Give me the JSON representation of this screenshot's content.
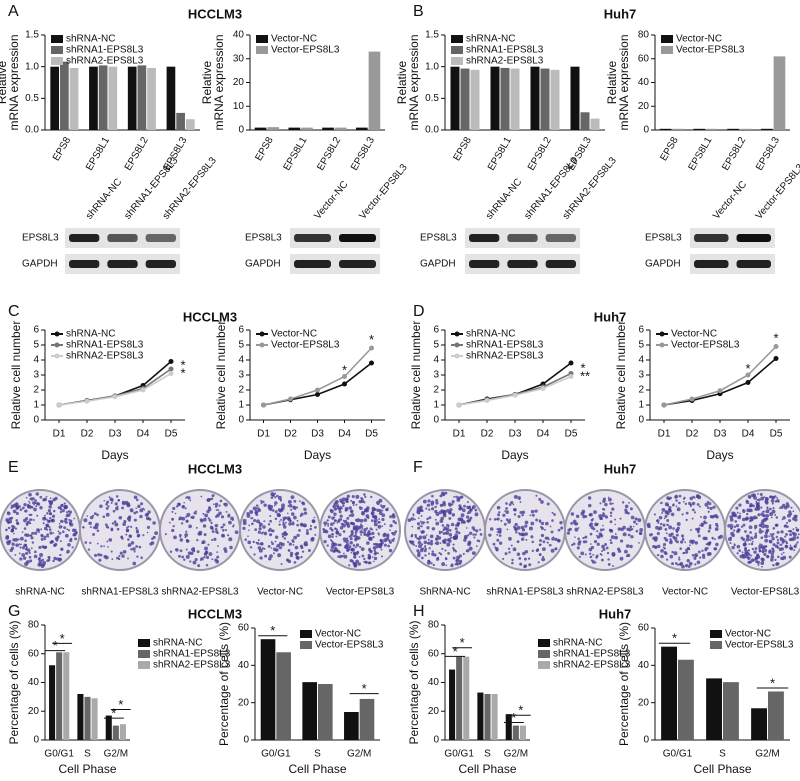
{
  "panel_labels": [
    "A",
    "B",
    "C",
    "D",
    "E",
    "F",
    "G",
    "H"
  ],
  "chart_data": [
    {
      "type": "bar",
      "title": "HCCLM3",
      "ylabel": [
        "Relative",
        "mRNA expression"
      ],
      "categories": [
        "EPS8",
        "EPS8L1",
        "EPS8L2",
        "EPS8L3"
      ],
      "ylim": [
        0,
        1.5
      ],
      "yticks": [
        {
          "value": 0,
          "label": "0.0"
        },
        0.5,
        {
          "value": 1,
          "label": "1.0"
        },
        1.5
      ],
      "legend": "upper left",
      "series": [
        {
          "name": "shRNA-NC",
          "color": "#111111",
          "values": [
            1.0,
            1.0,
            1.0,
            1.0
          ]
        },
        {
          "name": "shRNA1-EPS8L3",
          "color": "#666666",
          "values": [
            1.08,
            1.02,
            1.02,
            0.27
          ]
        },
        {
          "name": "shRNA2-EPS8L3",
          "color": "#bbbbbb",
          "values": [
            0.98,
            1.0,
            0.98,
            0.17
          ]
        }
      ]
    },
    {
      "type": "bar",
      "ylabel": [
        "Relative",
        "mRNA expression"
      ],
      "categories": [
        "EPS8",
        "EPS8L1",
        "EPS8L2",
        "EPS8L3"
      ],
      "ylim": [
        0,
        40
      ],
      "yticks": [
        0,
        10,
        20,
        30,
        40
      ],
      "legend": "upper left",
      "series": [
        {
          "name": "Vector-NC",
          "color": "#111111",
          "values": [
            1,
            1,
            1,
            1
          ]
        },
        {
          "name": "Vector-EPS8L3",
          "color": "#999999",
          "values": [
            1.2,
            1,
            1,
            33
          ]
        }
      ]
    },
    {
      "type": "bar",
      "title": "Huh7",
      "ylabel": [
        "Relative",
        "mRNA expression"
      ],
      "categories": [
        "EPS8",
        "EPS8L1",
        "EPS8L2",
        "EPS8L3"
      ],
      "ylim": [
        0,
        1.5
      ],
      "yticks": [
        {
          "value": 0,
          "label": "0.0"
        },
        0.5,
        {
          "value": 1,
          "label": "1.0"
        },
        1.5
      ],
      "legend": "upper left",
      "series": [
        {
          "name": "shRNA-NC",
          "color": "#111111",
          "values": [
            1.0,
            1.0,
            1.0,
            1.0
          ]
        },
        {
          "name": "shRNA1-EPS8L3",
          "color": "#666666",
          "values": [
            0.97,
            0.98,
            0.97,
            0.28
          ]
        },
        {
          "name": "shRNA2-EPS8L3",
          "color": "#bbbbbb",
          "values": [
            0.95,
            0.97,
            0.95,
            0.18
          ]
        }
      ]
    },
    {
      "type": "bar",
      "ylabel": [
        "Relative",
        "mRNA expression"
      ],
      "categories": [
        "EPS8",
        "EPS8L1",
        "EPS8L2",
        "EPS8L3"
      ],
      "ylim": [
        0,
        80
      ],
      "yticks": [
        0,
        20,
        40,
        60,
        80
      ],
      "legend": "upper left",
      "series": [
        {
          "name": "Vector-NC",
          "color": "#111111",
          "values": [
            1,
            1,
            1,
            1
          ]
        },
        {
          "name": "Vector-EPS8L3",
          "color": "#999999",
          "values": [
            1,
            1,
            1,
            62
          ]
        }
      ]
    },
    {
      "type": "line",
      "title": "HCCLM3",
      "ylabel": [
        "Relative cell number"
      ],
      "xlabel": "Days",
      "categories": [
        "D1",
        "D2",
        "D3",
        "D4",
        "D5"
      ],
      "ylim": [
        0,
        6
      ],
      "yticks": [
        0,
        1,
        2,
        3,
        4,
        5,
        6
      ],
      "legend": "upper left",
      "annotations": [
        "*",
        "*"
      ],
      "series": [
        {
          "name": "shRNA-NC",
          "color": "#111111",
          "values": [
            1,
            1.3,
            1.6,
            2.3,
            3.9
          ]
        },
        {
          "name": "shRNA1-EPS8L3",
          "color": "#777777",
          "values": [
            1,
            1.3,
            1.6,
            2.1,
            3.4
          ]
        },
        {
          "name": "shRNA2-EPS8L3",
          "color": "#cccccc",
          "values": [
            1,
            1.25,
            1.55,
            2.0,
            3.1
          ]
        }
      ]
    },
    {
      "type": "line",
      "ylabel": [
        "Relative cell number"
      ],
      "xlabel": "Days",
      "categories": [
        "D1",
        "D2",
        "D3",
        "D4",
        "D5"
      ],
      "ylim": [
        0,
        6
      ],
      "yticks": [
        0,
        1,
        2,
        3,
        4,
        5,
        6
      ],
      "legend": "upper left",
      "annotations": [
        "*",
        "*"
      ],
      "series": [
        {
          "name": "Vector-NC",
          "color": "#111111",
          "values": [
            1,
            1.35,
            1.7,
            2.4,
            3.8
          ]
        },
        {
          "name": "Vector-EPS8L3",
          "color": "#999999",
          "values": [
            1,
            1.4,
            2.0,
            2.9,
            4.8
          ]
        }
      ]
    },
    {
      "type": "line",
      "title": "Huh7",
      "ylabel": [
        "Relative cell number"
      ],
      "xlabel": "Days",
      "categories": [
        "D1",
        "D2",
        "D3",
        "D4",
        "D5"
      ],
      "ylim": [
        0,
        6
      ],
      "yticks": [
        0,
        1,
        2,
        3,
        4,
        5,
        6
      ],
      "legend": "upper left",
      "annotations": [
        "*",
        "**"
      ],
      "series": [
        {
          "name": "shRNA-NC",
          "color": "#111111",
          "values": [
            1,
            1.4,
            1.7,
            2.4,
            3.8
          ]
        },
        {
          "name": "shRNA1-EPS8L3",
          "color": "#777777",
          "values": [
            1,
            1.35,
            1.7,
            2.2,
            3.1
          ]
        },
        {
          "name": "shRNA2-EPS8L3",
          "color": "#cccccc",
          "values": [
            1,
            1.3,
            1.65,
            2.1,
            2.9
          ]
        }
      ]
    },
    {
      "type": "line",
      "ylabel": [
        "Relative cell number"
      ],
      "xlabel": "Days",
      "categories": [
        "D1",
        "D2",
        "D3",
        "D4",
        "D5"
      ],
      "ylim": [
        0,
        6
      ],
      "yticks": [
        0,
        1,
        2,
        3,
        4,
        5,
        6
      ],
      "legend": "upper left",
      "annotations": [
        "*",
        "*"
      ],
      "series": [
        {
          "name": "Vector-NC",
          "color": "#111111",
          "values": [
            1,
            1.3,
            1.75,
            2.5,
            4.1
          ]
        },
        {
          "name": "Vector-EPS8L3",
          "color": "#999999",
          "values": [
            1,
            1.4,
            1.95,
            3.0,
            4.9
          ]
        }
      ]
    },
    {
      "type": "bar",
      "title": "HCCLM3",
      "ylabel": [
        "Percentage of cells (%)"
      ],
      "xlabel": "Cell Phase",
      "categories": [
        "G0/G1",
        "S",
        "G2/M"
      ],
      "ylim": [
        0,
        80
      ],
      "yticks": [
        0,
        20,
        40,
        60,
        80
      ],
      "legend": "right",
      "annotations": [
        "*",
        "*",
        "*",
        "*"
      ],
      "series": [
        {
          "name": "shRNA-NC",
          "color": "#111111",
          "values": [
            52,
            32,
            17
          ]
        },
        {
          "name": "shRNA1-EPS8L3",
          "color": "#666666",
          "values": [
            61,
            30,
            10
          ]
        },
        {
          "name": "shRNA2-EPS8L3",
          "color": "#aaaaaa",
          "values": [
            61,
            29,
            11
          ]
        }
      ]
    },
    {
      "type": "bar",
      "ylabel": [
        "Percentage of cells (%)"
      ],
      "xlabel": "Cell Phase",
      "categories": [
        "G0/G1",
        "S",
        "G2/M"
      ],
      "ylim": [
        0,
        60
      ],
      "yticks": [
        0,
        20,
        40,
        60
      ],
      "legend": "upper right",
      "annotations": [
        "*",
        "*"
      ],
      "series": [
        {
          "name": "Vector-NC",
          "color": "#111111",
          "values": [
            54,
            31,
            15
          ]
        },
        {
          "name": "Vector-EPS8L3",
          "color": "#666666",
          "values": [
            47,
            30,
            22
          ]
        }
      ]
    },
    {
      "type": "bar",
      "title": "Huh7",
      "ylabel": [
        "Percentage of cells (%)"
      ],
      "xlabel": "Cell Phase",
      "categories": [
        "G0/G1",
        "S",
        "G2/M"
      ],
      "ylim": [
        0,
        80
      ],
      "yticks": [
        0,
        20,
        40,
        60,
        80
      ],
      "legend": "right",
      "annotations": [
        "*",
        "*",
        "*",
        "*"
      ],
      "series": [
        {
          "name": "shRNA-NC",
          "color": "#111111",
          "values": [
            49,
            33,
            18
          ]
        },
        {
          "name": "shRNA1-EPS8L3",
          "color": "#666666",
          "values": [
            58,
            32,
            10
          ]
        },
        {
          "name": "shRNA2-EPS8L3",
          "color": "#aaaaaa",
          "values": [
            58,
            32,
            10
          ]
        }
      ]
    },
    {
      "type": "bar",
      "ylabel": [
        "Percentage of cells (%)"
      ],
      "xlabel": "Cell Phase",
      "categories": [
        "G0/G1",
        "S",
        "G2/M"
      ],
      "ylim": [
        0,
        60
      ],
      "yticks": [
        0,
        20,
        40,
        60
      ],
      "legend": "upper right",
      "annotations": [
        "*",
        "*"
      ],
      "series": [
        {
          "name": "Vector-NC",
          "color": "#111111",
          "values": [
            50,
            33,
            17
          ]
        },
        {
          "name": "Vector-EPS8L3",
          "color": "#666666",
          "values": [
            43,
            31,
            26
          ]
        }
      ]
    }
  ],
  "blots": [
    {
      "lanes": [
        "shRNA-NC",
        "shRNA1-EPS8L3",
        "shRNA2-EPS8L3"
      ],
      "rows": [
        "EPS8L3",
        "GAPDH"
      ]
    },
    {
      "lanes": [
        "Vector-NC",
        "Vector-EPS8L3"
      ],
      "rows": [
        "EPS8L3",
        "GAPDH"
      ]
    },
    {
      "lanes": [
        "shRNA-NC",
        "shRNA1-EPS8L3",
        "shRNA2-EPS8L3"
      ],
      "rows": [
        "EPS8L3",
        "GAPDH"
      ]
    },
    {
      "lanes": [
        "Vector-NC",
        "Vector-EPS8L3"
      ],
      "rows": [
        "EPS8L3",
        "GAPDH"
      ]
    }
  ],
  "colonies": [
    {
      "title": "HCCLM3",
      "labels": [
        "shRNA-NC",
        "shRNA1-EPS8L3",
        "shRNA2-EPS8L3",
        "Vector-NC",
        "Vector-EPS8L3"
      ]
    },
    {
      "title": "Huh7",
      "labels": [
        "ShRNA-NC",
        "shRNA1-EPS8L3",
        "shRNA2-EPS8L3",
        "Vector-NC",
        "Vector-EPS8L3"
      ]
    }
  ]
}
